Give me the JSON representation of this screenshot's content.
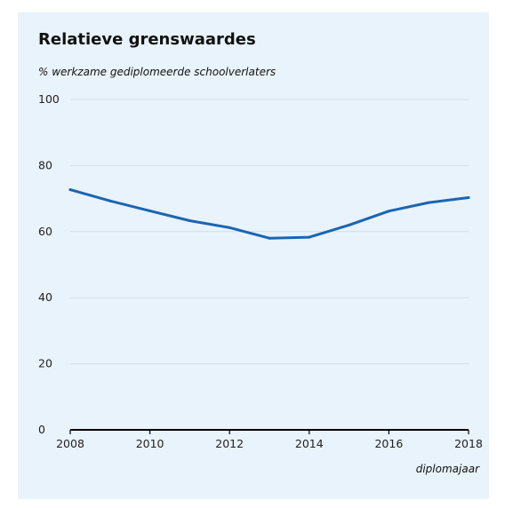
{
  "colors": {
    "background": "#e9f3fb",
    "line": "#1b64b4",
    "grid": "#d3dde6",
    "axis": "#000000",
    "text": "#111111"
  },
  "chart_data": {
    "type": "line",
    "title": "Relatieve grenswaardes",
    "ylabel": "% werkzame gediplomeerde schoolverlaters",
    "xlabel": "diplomajaar",
    "ylim": [
      0,
      100
    ],
    "xlim": [
      2008,
      2018
    ],
    "yticks": [
      "0",
      "20",
      "40",
      "60",
      "80",
      "100"
    ],
    "xticks": [
      "2008",
      "2010",
      "2012",
      "2014",
      "2016",
      "2018"
    ],
    "grid": true,
    "legend": "none",
    "x": [
      2008,
      2009,
      2010,
      2011,
      2012,
      2013,
      2014,
      2015,
      2016,
      2017,
      2018
    ],
    "series": [
      {
        "values": [
          72.7,
          69.3,
          66.3,
          63.3,
          61.2,
          58.0,
          58.3,
          62.0,
          66.2,
          68.8,
          70.3
        ]
      }
    ]
  }
}
